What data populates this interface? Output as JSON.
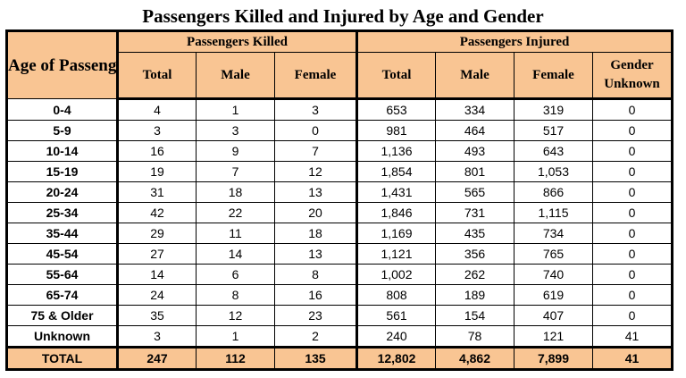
{
  "title": "Passengers Killed and Injured by Age and Gender",
  "headers": {
    "age": "Age of Passenger",
    "killed_group": "Passengers Killed",
    "injured_group": "Passengers Injured",
    "killed_cols": [
      "Total",
      "Male",
      "Female"
    ],
    "injured_cols": [
      "Total",
      "Male",
      "Female",
      "Gender Unknown"
    ]
  },
  "rows": [
    {
      "age": "0-4",
      "k_total": "4",
      "k_male": "1",
      "k_female": "3",
      "i_total": "653",
      "i_male": "334",
      "i_female": "319",
      "i_unknown": "0"
    },
    {
      "age": "5-9",
      "k_total": "3",
      "k_male": "3",
      "k_female": "0",
      "i_total": "981",
      "i_male": "464",
      "i_female": "517",
      "i_unknown": "0"
    },
    {
      "age": "10-14",
      "k_total": "16",
      "k_male": "9",
      "k_female": "7",
      "i_total": "1,136",
      "i_male": "493",
      "i_female": "643",
      "i_unknown": "0"
    },
    {
      "age": "15-19",
      "k_total": "19",
      "k_male": "7",
      "k_female": "12",
      "i_total": "1,854",
      "i_male": "801",
      "i_female": "1,053",
      "i_unknown": "0"
    },
    {
      "age": "20-24",
      "k_total": "31",
      "k_male": "18",
      "k_female": "13",
      "i_total": "1,431",
      "i_male": "565",
      "i_female": "866",
      "i_unknown": "0"
    },
    {
      "age": "25-34",
      "k_total": "42",
      "k_male": "22",
      "k_female": "20",
      "i_total": "1,846",
      "i_male": "731",
      "i_female": "1,115",
      "i_unknown": "0"
    },
    {
      "age": "35-44",
      "k_total": "29",
      "k_male": "11",
      "k_female": "18",
      "i_total": "1,169",
      "i_male": "435",
      "i_female": "734",
      "i_unknown": "0"
    },
    {
      "age": "45-54",
      "k_total": "27",
      "k_male": "14",
      "k_female": "13",
      "i_total": "1,121",
      "i_male": "356",
      "i_female": "765",
      "i_unknown": "0"
    },
    {
      "age": "55-64",
      "k_total": "14",
      "k_male": "6",
      "k_female": "8",
      "i_total": "1,002",
      "i_male": "262",
      "i_female": "740",
      "i_unknown": "0"
    },
    {
      "age": "65-74",
      "k_total": "24",
      "k_male": "8",
      "k_female": "16",
      "i_total": "808",
      "i_male": "189",
      "i_female": "619",
      "i_unknown": "0"
    },
    {
      "age": "75 & Older",
      "k_total": "35",
      "k_male": "12",
      "k_female": "23",
      "i_total": "561",
      "i_male": "154",
      "i_female": "407",
      "i_unknown": "0"
    },
    {
      "age": "Unknown",
      "k_total": "3",
      "k_male": "1",
      "k_female": "2",
      "i_total": "240",
      "i_male": "78",
      "i_female": "121",
      "i_unknown": "41"
    }
  ],
  "total": {
    "age": "TOTAL",
    "k_total": "247",
    "k_male": "112",
    "k_female": "135",
    "i_total": "12,802",
    "i_male": "4,862",
    "i_female": "7,899",
    "i_unknown": "41"
  },
  "colors": {
    "header_bg": "#f9c593",
    "border": "#000000"
  }
}
